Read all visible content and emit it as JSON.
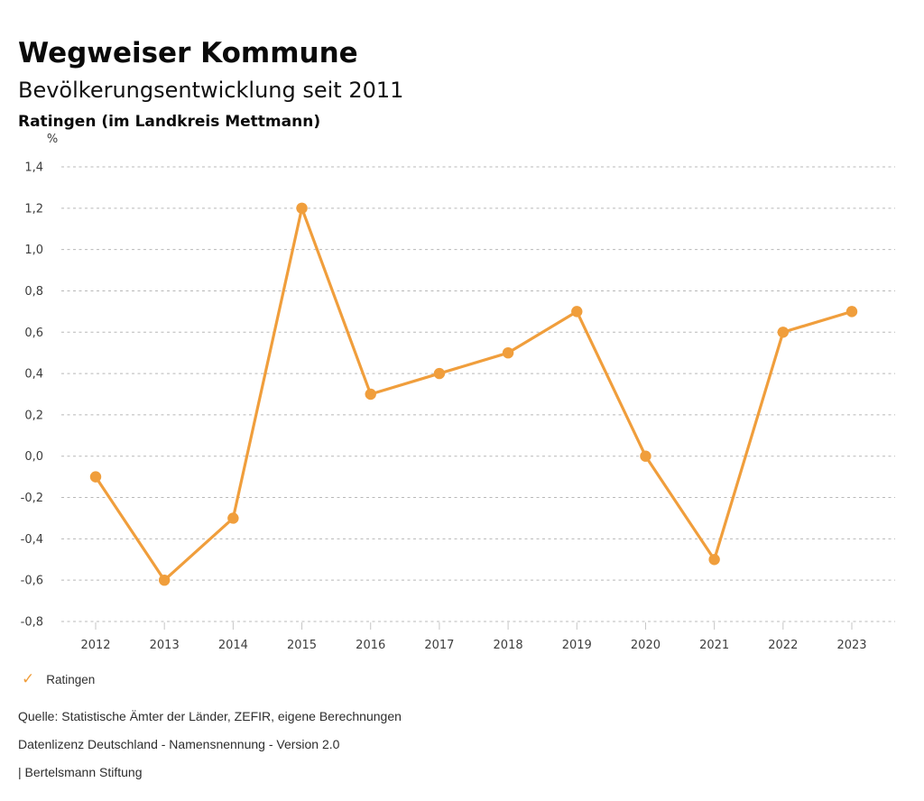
{
  "header": {
    "title": "Wegweiser Kommune",
    "subtitle": "Bevölkerungsentwicklung seit 2011",
    "region": "Ratingen (im Landkreis Mettmann)"
  },
  "chart_data": {
    "type": "line",
    "title": "Bevölkerungsentwicklung seit 2011",
    "unit_label": "%",
    "categories": [
      "2012",
      "2013",
      "2014",
      "2015",
      "2016",
      "2017",
      "2018",
      "2019",
      "2020",
      "2021",
      "2022",
      "2023"
    ],
    "series": [
      {
        "name": "Ratingen",
        "values": [
          -0.1,
          -0.6,
          -0.3,
          1.2,
          0.3,
          0.4,
          0.5,
          0.7,
          0.0,
          -0.5,
          0.6,
          0.7
        ],
        "color": "#F09E3C"
      }
    ],
    "ylim": [
      -0.8,
      1.4
    ],
    "yticks": [
      1.4,
      1.2,
      1.0,
      0.8,
      0.6,
      0.4,
      0.2,
      0.0,
      -0.2,
      -0.4,
      -0.6,
      -0.8
    ],
    "ytick_labels": [
      "1,4",
      "1,2",
      "1,0",
      "0,8",
      "0,6",
      "0,4",
      "0,2",
      "0,0",
      "-0,2",
      "-0,4",
      "-0,6",
      "-0,8"
    ],
    "grid": "horizontal-dashed",
    "legend_position": "bottom-left"
  },
  "legend": {
    "check_icon": "✓",
    "label": "Ratingen"
  },
  "footer": {
    "source": "Quelle: Statistische Ämter der Länder, ZEFIR, eigene Berechnungen",
    "license": "Datenlizenz Deutschland - Namensnennung - Version 2.0",
    "publisher": "| Bertelsmann Stiftung"
  },
  "colors": {
    "series": "#F09E3C",
    "grid": "#b8b8b8",
    "tick": "#c6c6c6",
    "axis_text": "#3d3d3d"
  }
}
